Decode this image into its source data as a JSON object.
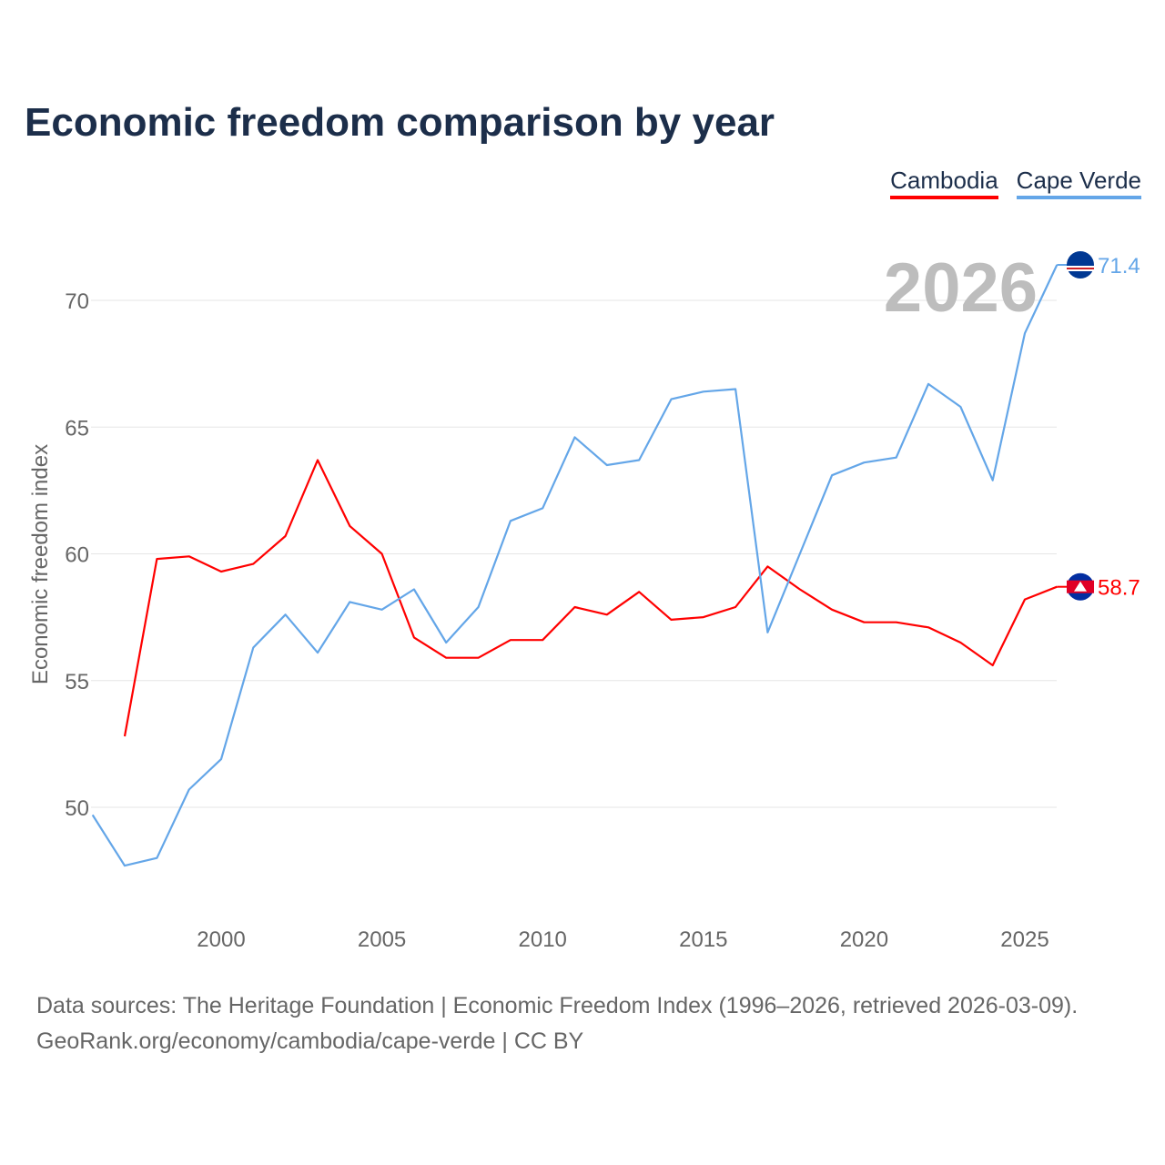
{
  "chart_data": {
    "type": "line",
    "title": "Economic freedom comparison by year",
    "xlabel": "",
    "ylabel": "Economic freedom index",
    "xlim": [
      1996,
      2026
    ],
    "ylim": [
      45.5,
      73
    ],
    "x_ticks": [
      2000,
      2005,
      2010,
      2015,
      2020,
      2025
    ],
    "y_ticks": [
      50,
      55,
      60,
      65,
      70
    ],
    "grid": true,
    "legend_position": "top-right",
    "year_watermark": "2026",
    "series": [
      {
        "name": "Cambodia",
        "color": "#ff0000",
        "end_label": "58.7",
        "x": [
          1997,
          1998,
          1999,
          2000,
          2001,
          2002,
          2003,
          2004,
          2005,
          2006,
          2007,
          2008,
          2009,
          2010,
          2011,
          2012,
          2013,
          2014,
          2015,
          2016,
          2017,
          2018,
          2019,
          2020,
          2021,
          2022,
          2023,
          2024,
          2025,
          2026
        ],
        "values": [
          52.8,
          59.8,
          59.9,
          59.3,
          59.6,
          60.7,
          63.7,
          61.1,
          60.0,
          56.7,
          55.9,
          55.9,
          56.6,
          56.6,
          57.9,
          57.6,
          58.5,
          57.4,
          57.5,
          57.9,
          59.5,
          58.6,
          57.8,
          57.3,
          57.3,
          57.1,
          56.5,
          55.6,
          58.2,
          58.7
        ]
      },
      {
        "name": "Cape Verde",
        "color": "#64a6e8",
        "end_label": "71.4",
        "x": [
          1996,
          1997,
          1998,
          1999,
          2000,
          2001,
          2002,
          2003,
          2004,
          2005,
          2006,
          2007,
          2008,
          2009,
          2010,
          2011,
          2012,
          2013,
          2014,
          2015,
          2016,
          2017,
          2018,
          2019,
          2020,
          2021,
          2022,
          2023,
          2024,
          2025,
          2026
        ],
        "values": [
          49.7,
          47.7,
          48.0,
          50.7,
          51.9,
          56.3,
          57.6,
          56.1,
          58.1,
          57.8,
          58.6,
          56.5,
          57.9,
          61.3,
          61.8,
          64.6,
          63.5,
          63.7,
          66.1,
          66.4,
          66.5,
          56.9,
          60.0,
          63.1,
          63.6,
          63.8,
          66.7,
          65.8,
          62.9,
          68.7,
          71.4
        ]
      }
    ]
  },
  "footer": {
    "line1": "Data sources: The Heritage Foundation | Economic Freedom Index (1996–2026, retrieved 2026-03-09).",
    "line2": "GeoRank.org/economy/cambodia/cape-verde | CC BY"
  }
}
